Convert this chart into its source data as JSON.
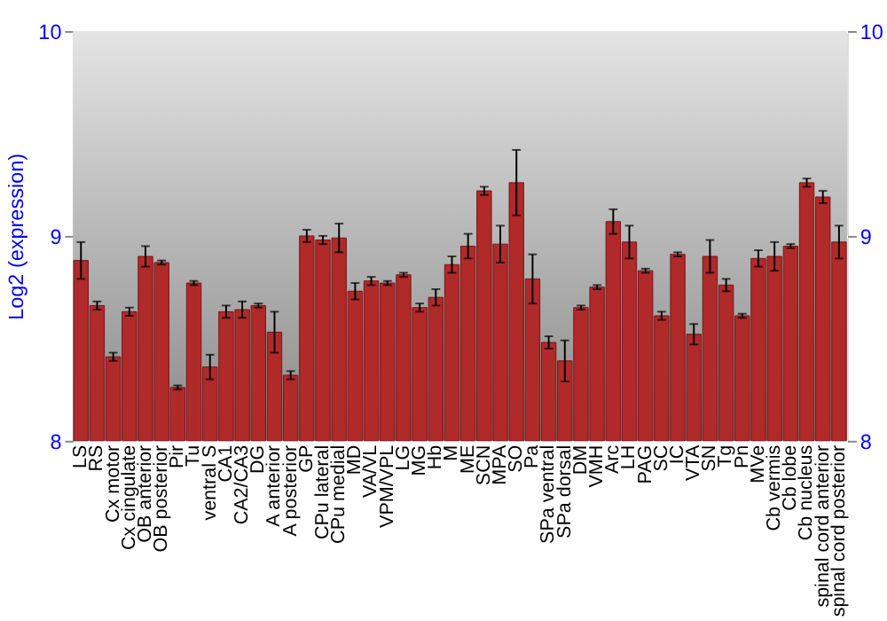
{
  "chart_data": {
    "type": "bar",
    "ylabel": "Log2 (expression)",
    "categories": [
      "LS",
      "RS",
      "Cx motor",
      "Cx cingulate",
      "OB anterior",
      "OB posterior",
      "Pir",
      "Tu",
      "ventral S",
      "CA1",
      "CA2/CA3",
      "DG",
      "A anterior",
      "A posterior",
      "GP",
      "CPu lateral",
      "CPu medial",
      "MD",
      "VA/VL",
      "VPM/VPL",
      "LG",
      "MG",
      "Hb",
      "M",
      "ME",
      "SCN",
      "MPA",
      "SO",
      "Pa",
      "SPa ventral",
      "SPa dorsal",
      "DM",
      "VMH",
      "Arc",
      "LH",
      "PAG",
      "SC",
      "IC",
      "VTA",
      "SN",
      "Tg",
      "Pn",
      "MVe",
      "Cb vermis",
      "Cb lobe",
      "Cb nucleus",
      "spinal cord anterior",
      "spinal cord posterior"
    ],
    "values": [
      8.88,
      8.66,
      8.41,
      8.63,
      8.9,
      8.87,
      8.26,
      8.77,
      8.36,
      8.63,
      8.64,
      8.66,
      8.53,
      8.32,
      9.0,
      8.98,
      8.99,
      8.73,
      8.78,
      8.77,
      8.81,
      8.65,
      8.7,
      8.86,
      8.95,
      9.22,
      8.96,
      9.26,
      8.79,
      8.48,
      8.39,
      8.65,
      8.75,
      9.07,
      8.97,
      8.83,
      8.61,
      8.91,
      8.52,
      8.9,
      8.76,
      8.61,
      8.89,
      8.9,
      8.95,
      9.26,
      9.19,
      8.97
    ],
    "errors": [
      0.09,
      0.02,
      0.02,
      0.02,
      0.05,
      0.01,
      0.01,
      0.01,
      0.06,
      0.03,
      0.04,
      0.01,
      0.1,
      0.02,
      0.03,
      0.02,
      0.07,
      0.04,
      0.02,
      0.01,
      0.01,
      0.02,
      0.04,
      0.04,
      0.06,
      0.02,
      0.09,
      0.16,
      0.12,
      0.03,
      0.1,
      0.01,
      0.01,
      0.06,
      0.08,
      0.01,
      0.02,
      0.01,
      0.05,
      0.08,
      0.03,
      0.01,
      0.04,
      0.07,
      0.01,
      0.02,
      0.03,
      0.08
    ],
    "color": "#b02a2a",
    "ylim": [
      8,
      10
    ],
    "yticks": [
      8,
      9,
      10
    ],
    "y2lim": [
      8,
      10
    ],
    "y2ticks": [
      8,
      9,
      10
    ],
    "grid": "y"
  }
}
